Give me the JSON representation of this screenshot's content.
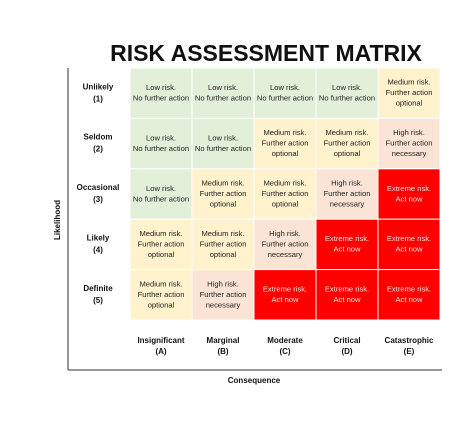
{
  "title": "RISK ASSESSMENT MATRIX",
  "y_axis_label": "Likelihood",
  "x_axis_label": "Consequence",
  "rows": [
    {
      "label": "Unlikely",
      "code": "(1)"
    },
    {
      "label": "Seldom",
      "code": "(2)"
    },
    {
      "label": "Occasional",
      "code": "(3)"
    },
    {
      "label": "Likely",
      "code": "(4)"
    },
    {
      "label": "Definite",
      "code": "(5)"
    }
  ],
  "columns": [
    {
      "label": "Insignificant",
      "code": "(A)"
    },
    {
      "label": "Marginal",
      "code": "(B)"
    },
    {
      "label": "Moderate",
      "code": "(C)"
    },
    {
      "label": "Critical",
      "code": "(D)"
    },
    {
      "label": "Catastrophic",
      "code": "(E)"
    }
  ],
  "cells": [
    [
      {
        "lines": [
          "Low risk.",
          "No further action"
        ],
        "color": "#e2efd9",
        "text_color": "#222"
      },
      {
        "lines": [
          "Low risk.",
          "No further action"
        ],
        "color": "#e2efd9",
        "text_color": "#222"
      },
      {
        "lines": [
          "Low risk.",
          "No further action"
        ],
        "color": "#e2efd9",
        "text_color": "#222"
      },
      {
        "lines": [
          "Low risk.",
          "No further action"
        ],
        "color": "#e2efd9",
        "text_color": "#222"
      },
      {
        "lines": [
          "Medium risk.",
          "Further action",
          "optional"
        ],
        "color": "#fff2cc",
        "text_color": "#222"
      }
    ],
    [
      {
        "lines": [
          "Low risk.",
          "No further action"
        ],
        "color": "#e2efd9",
        "text_color": "#222"
      },
      {
        "lines": [
          "Low risk.",
          "No further action"
        ],
        "color": "#e2efd9",
        "text_color": "#222"
      },
      {
        "lines": [
          "Medium risk.",
          "Further action",
          "optional"
        ],
        "color": "#fff2cc",
        "text_color": "#222"
      },
      {
        "lines": [
          "Medium risk.",
          "Further action",
          "optional"
        ],
        "color": "#fff2cc",
        "text_color": "#222"
      },
      {
        "lines": [
          "High risk.",
          "Further action",
          "necessary"
        ],
        "color": "#fbe4d5",
        "text_color": "#222"
      }
    ],
    [
      {
        "lines": [
          "Low risk.",
          "No further action"
        ],
        "color": "#e2efd9",
        "text_color": "#222"
      },
      {
        "lines": [
          "Medium risk.",
          "Further action",
          "optional"
        ],
        "color": "#fff2cc",
        "text_color": "#222"
      },
      {
        "lines": [
          "Medium risk.",
          "Further action",
          "optional"
        ],
        "color": "#fff2cc",
        "text_color": "#222"
      },
      {
        "lines": [
          "High risk.",
          "Further action",
          "necessary"
        ],
        "color": "#fbe4d5",
        "text_color": "#222"
      },
      {
        "lines": [
          "Extreme risk.",
          "Act now"
        ],
        "color": "#ff0000",
        "text_color": "#fde0e0"
      }
    ],
    [
      {
        "lines": [
          "Medium risk.",
          "Further action",
          "optional"
        ],
        "color": "#fff2cc",
        "text_color": "#222"
      },
      {
        "lines": [
          "Medium risk.",
          "Further action",
          "optional"
        ],
        "color": "#fff2cc",
        "text_color": "#222"
      },
      {
        "lines": [
          "High risk.",
          "Further action",
          "necessary"
        ],
        "color": "#fbe4d5",
        "text_color": "#222"
      },
      {
        "lines": [
          "Extreme risk.",
          "Act now"
        ],
        "color": "#ff0000",
        "text_color": "#fde0e0"
      },
      {
        "lines": [
          "Extreme risk.",
          "Act now"
        ],
        "color": "#ff0000",
        "text_color": "#fde0e0"
      }
    ],
    [
      {
        "lines": [
          "Medium risk.",
          "Further action",
          "optional"
        ],
        "color": "#fff2cc",
        "text_color": "#222"
      },
      {
        "lines": [
          "High risk.",
          "Further action",
          "necessary"
        ],
        "color": "#fbe4d5",
        "text_color": "#222"
      },
      {
        "lines": [
          "Extreme risk.",
          "Act now"
        ],
        "color": "#ff0000",
        "text_color": "#fde0e0"
      },
      {
        "lines": [
          "Extreme risk.",
          "Act now"
        ],
        "color": "#ff0000",
        "text_color": "#fde0e0"
      },
      {
        "lines": [
          "Extreme risk.",
          "Act now"
        ],
        "color": "#ff0000",
        "text_color": "#fde0e0"
      }
    ]
  ]
}
